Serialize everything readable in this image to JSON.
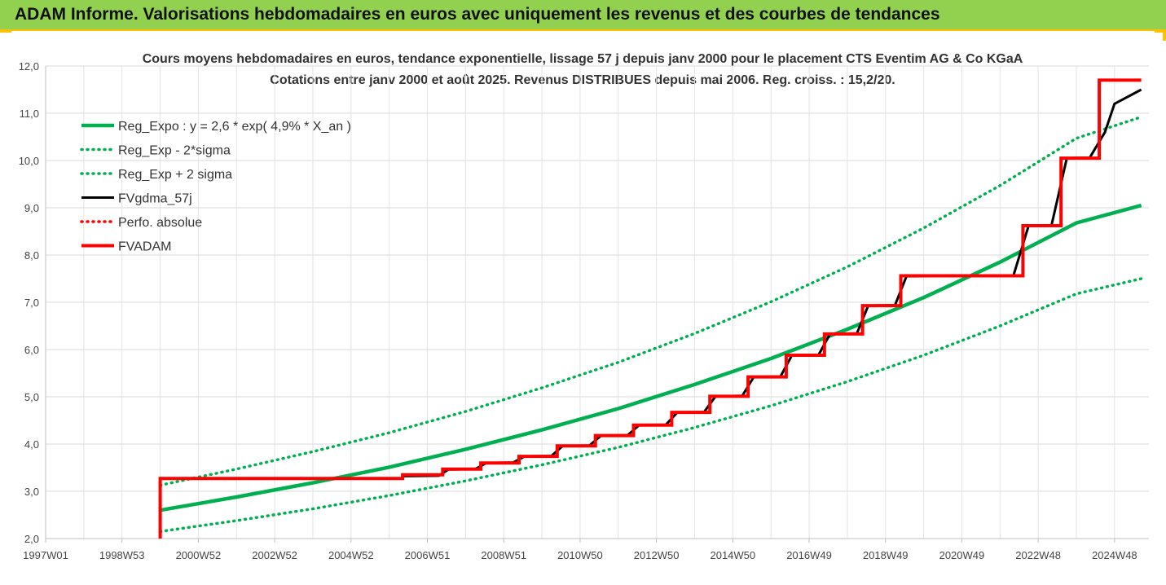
{
  "banner": {
    "title": "ADAM Informe. Valorisations hebdomadaires en euros avec uniquement les revenus et des courbes de tendances",
    "background": "#92d050",
    "border": "#ffc000"
  },
  "chart_data": {
    "type": "line",
    "title": "Cours moyens hebdomadaires en euros, tendance exponentielle, lissage 57 j depuis janv 2000 pour le placement CTS Eventim AG & Co KGaA",
    "subtitle": "Cotations entre janv 2000 et août 2025. Revenus DISTRIBUES depuis mai 2006. Reg. croiss. : 15,2/20.",
    "xlabel": "",
    "ylabel": "",
    "x_ticks": [
      "1997W01",
      "1998W53",
      "2000W52",
      "2002W52",
      "2004W52",
      "2006W51",
      "2008W51",
      "2010W50",
      "2012W50",
      "2014W50",
      "2016W49",
      "2018W49",
      "2020W49",
      "2022W48",
      "2024W48"
    ],
    "x_range": [
      1997.0,
      2025.9
    ],
    "ylim": [
      2.0,
      12.0
    ],
    "y_ticks": [
      "2,0",
      "3,0",
      "4,0",
      "5,0",
      "6,0",
      "7,0",
      "8,0",
      "9,0",
      "10,0",
      "11,0",
      "12,0"
    ],
    "grid": true,
    "legend_position": "top-left",
    "series": [
      {
        "name": "Reg_Expo : y = 2,6 * exp( 4,9% *  X_an )",
        "color": "#00b050",
        "style": "solid",
        "x": [
          2000.0,
          2002.0,
          2004.0,
          2006.0,
          2008.0,
          2010.0,
          2012.0,
          2014.0,
          2016.0,
          2018.0,
          2020.0,
          2022.0,
          2024.0,
          2025.7
        ],
        "y": [
          2.6,
          2.88,
          3.18,
          3.51,
          3.89,
          4.3,
          4.75,
          5.26,
          5.81,
          6.43,
          7.1,
          7.85,
          8.68,
          9.05
        ]
      },
      {
        "name": "Reg_Exp - 2*sigma",
        "color": "#00b050",
        "style": "dotted",
        "x": [
          2000.0,
          2002.0,
          2004.0,
          2006.0,
          2008.0,
          2010.0,
          2012.0,
          2014.0,
          2016.0,
          2018.0,
          2020.0,
          2022.0,
          2024.0,
          2025.7
        ],
        "y": [
          2.15,
          2.38,
          2.63,
          2.91,
          3.22,
          3.56,
          3.93,
          4.35,
          4.81,
          5.32,
          5.88,
          6.5,
          7.18,
          7.5
        ]
      },
      {
        "name": "Reg_Exp + 2 sigma",
        "color": "#00b050",
        "style": "dotted",
        "x": [
          2000.0,
          2002.0,
          2004.0,
          2006.0,
          2008.0,
          2010.0,
          2012.0,
          2014.0,
          2016.0,
          2018.0,
          2020.0,
          2022.0,
          2024.0,
          2025.7
        ],
        "y": [
          3.13,
          3.47,
          3.84,
          4.24,
          4.69,
          5.19,
          5.73,
          6.34,
          7.01,
          7.75,
          8.57,
          9.47,
          10.47,
          10.92
        ]
      },
      {
        "name": "FVgdma_57j",
        "color": "#000000",
        "style": "solid",
        "x": [
          2006.35,
          2007.3,
          2007.55,
          2008.25,
          2008.55,
          2009.25,
          2009.55,
          2010.25,
          2010.55,
          2011.25,
          2011.55,
          2012.25,
          2012.55,
          2013.25,
          2013.55,
          2014.25,
          2014.55,
          2015.25,
          2015.55,
          2016.25,
          2016.55,
          2017.25,
          2017.55,
          2018.25,
          2018.55,
          2019.25,
          2019.55,
          2022.35,
          2022.75,
          2023.35,
          2023.75,
          2024.35,
          2024.75,
          2025.0,
          2025.7
        ],
        "y": [
          3.32,
          3.33,
          3.46,
          3.47,
          3.6,
          3.61,
          3.74,
          3.75,
          3.96,
          3.97,
          4.18,
          4.19,
          4.4,
          4.41,
          4.67,
          4.68,
          5.01,
          5.02,
          5.42,
          5.43,
          5.88,
          5.89,
          6.33,
          6.34,
          6.93,
          6.94,
          7.55,
          7.56,
          8.62,
          8.63,
          10.05,
          10.06,
          10.6,
          11.2,
          11.5
        ]
      },
      {
        "name": "Perfo. absolue",
        "color": "#ff0000",
        "style": "dotted",
        "x": [],
        "y": []
      },
      {
        "name": "FVADAM",
        "color": "#ff0000",
        "style": "solid",
        "x": [
          2000.0,
          2000.0,
          2006.35,
          2006.35,
          2007.4,
          2007.4,
          2008.4,
          2008.4,
          2009.4,
          2009.4,
          2010.4,
          2010.4,
          2011.4,
          2011.4,
          2012.4,
          2012.4,
          2013.4,
          2013.4,
          2014.4,
          2014.4,
          2015.4,
          2015.4,
          2016.4,
          2016.4,
          2017.4,
          2017.4,
          2018.4,
          2018.4,
          2019.4,
          2019.4,
          2022.6,
          2022.6,
          2023.6,
          2023.6,
          2024.6,
          2024.6,
          2025.7
        ],
        "y": [
          2.0,
          3.27,
          3.27,
          3.35,
          3.35,
          3.47,
          3.47,
          3.6,
          3.6,
          3.74,
          3.74,
          3.96,
          3.96,
          4.18,
          4.18,
          4.4,
          4.4,
          4.67,
          4.67,
          5.01,
          5.01,
          5.42,
          5.42,
          5.88,
          5.88,
          6.33,
          6.33,
          6.93,
          6.93,
          7.56,
          7.56,
          8.62,
          8.62,
          10.05,
          10.05,
          11.7,
          11.7
        ]
      }
    ]
  }
}
